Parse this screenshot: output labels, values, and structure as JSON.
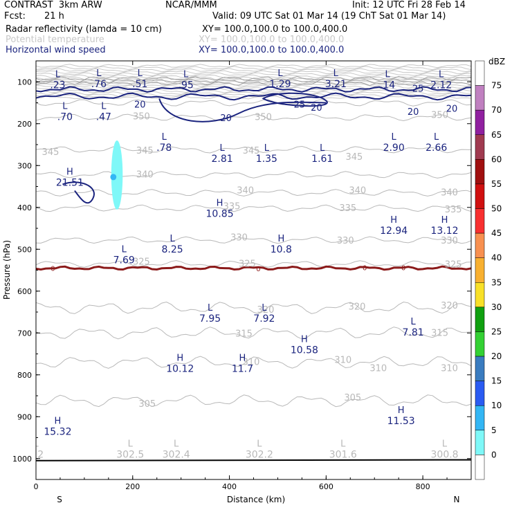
{
  "header": {
    "model": "CONTRAST  3km ARW",
    "center": "NCAR/MMM",
    "init": "Init: 12 UTC Fri 28 Feb 14",
    "fcst_label": "Fcst:",
    "fcst_value": "21 h",
    "valid": "Valid: 09 UTC Sat 01 Mar 14 (19 ChT Sat 01 Mar 14)"
  },
  "fields": [
    {
      "name": "Radar reflectivity (lamda = 10 cm)",
      "xy": "XY= 100.0,100.0 to 100.0,400.0",
      "color": "#000000"
    },
    {
      "name": "Potential temperature",
      "xy": "XY= 100.0,100.0 to 100.0,400.0",
      "color": "#c8c8c8"
    },
    {
      "name": "Horizontal wind speed",
      "xy": "XY= 100.0,100.0 to 100.0,400.0",
      "color": "#1a237e"
    }
  ],
  "colorbar": {
    "unit": "dBZ",
    "levels": [
      "0",
      "5",
      "10",
      "15",
      "20",
      "25",
      "30",
      "35",
      "40",
      "45",
      "50",
      "55",
      "60",
      "65",
      "70",
      "75"
    ],
    "colors": [
      "#ffffff",
      "#7ff8f8",
      "#33b6f4",
      "#2a5bf2",
      "#3a7cc0",
      "#33d133",
      "#10a010",
      "#f8e028",
      "#f8b030",
      "#f89050",
      "#f83030",
      "#d01010",
      "#a01010",
      "#a03a50",
      "#9020a0",
      "#c080c0"
    ]
  },
  "chart_data": {
    "type": "heatmap",
    "title": "",
    "xlabel": "Distance (km)",
    "ylabel": "Pressure (hPa)",
    "xlim": [
      0,
      900
    ],
    "ylim": [
      1050,
      50
    ],
    "x_ticks": [
      "0",
      "200",
      "400",
      "600",
      "800"
    ],
    "y_ticks": [
      "100",
      "200",
      "300",
      "400",
      "500",
      "600",
      "700",
      "800",
      "900",
      "1000"
    ],
    "x_end_labels": {
      "left": "S",
      "right": "N"
    },
    "reflectivity_cells": [
      {
        "x": 160,
        "p": 240,
        "x2": 175,
        "p2": 405,
        "dbz": 5,
        "color": "#7ff8f8"
      },
      {
        "x": 158,
        "p": 320,
        "x2": 162,
        "p2": 335,
        "dbz": 10,
        "color": "#33b6f4"
      }
    ],
    "theta_labels": [
      {
        "x": 470,
        "p": 185,
        "t": "350"
      },
      {
        "x": 218,
        "p": 183,
        "t": "350"
      },
      {
        "x": 835,
        "p": 180,
        "t": "350"
      },
      {
        "x": 30,
        "p": 268,
        "t": "345"
      },
      {
        "x": 225,
        "p": 265,
        "t": "345"
      },
      {
        "x": 445,
        "p": 265,
        "t": "345"
      },
      {
        "x": 658,
        "p": 280,
        "t": "345"
      },
      {
        "x": 225,
        "p": 322,
        "t": "340"
      },
      {
        "x": 433,
        "p": 360,
        "t": "340"
      },
      {
        "x": 665,
        "p": 360,
        "t": "340"
      },
      {
        "x": 855,
        "p": 365,
        "t": "340"
      },
      {
        "x": 405,
        "p": 398,
        "t": "335"
      },
      {
        "x": 645,
        "p": 402,
        "t": "335"
      },
      {
        "x": 863,
        "p": 405,
        "t": "335"
      },
      {
        "x": 420,
        "p": 472,
        "t": "330"
      },
      {
        "x": 640,
        "p": 480,
        "t": "330"
      },
      {
        "x": 855,
        "p": 480,
        "t": "330"
      },
      {
        "x": 218,
        "p": 530,
        "t": "325"
      },
      {
        "x": 437,
        "p": 535,
        "t": "325"
      },
      {
        "x": 863,
        "p": 537,
        "t": "325"
      },
      {
        "x": 475,
        "p": 645,
        "t": "320"
      },
      {
        "x": 664,
        "p": 638,
        "t": "320"
      },
      {
        "x": 855,
        "p": 635,
        "t": "320"
      },
      {
        "x": 430,
        "p": 702,
        "t": "315"
      },
      {
        "x": 835,
        "p": 700,
        "t": "315"
      },
      {
        "x": 635,
        "p": 765,
        "t": "310"
      },
      {
        "x": 445,
        "p": 770,
        "t": "310"
      },
      {
        "x": 708,
        "p": 785,
        "t": "310"
      },
      {
        "x": 855,
        "p": 785,
        "t": "310"
      },
      {
        "x": 230,
        "p": 870,
        "t": "305"
      },
      {
        "x": 655,
        "p": 855,
        "t": "305"
      }
    ],
    "wind_labels": [
      {
        "x": 215,
        "p": 155,
        "t": "20"
      },
      {
        "x": 580,
        "p": 162,
        "t": "20"
      },
      {
        "x": 780,
        "p": 172,
        "t": "20"
      },
      {
        "x": 860,
        "p": 165,
        "t": "20"
      },
      {
        "x": 393,
        "p": 187,
        "t": "20"
      },
      {
        "x": 545,
        "p": 155,
        "t": "25"
      },
      {
        "x": 790,
        "p": 117,
        "t": "25"
      }
    ],
    "wind_zero_labels": [
      {
        "x": 35,
        "p": 545,
        "t": "0"
      },
      {
        "x": 460,
        "p": 546,
        "t": "0"
      },
      {
        "x": 680,
        "p": 543,
        "t": "0"
      },
      {
        "x": 760,
        "p": 543,
        "t": "0"
      }
    ],
    "extrema": [
      {
        "kind": "L",
        "x": 45,
        "p": 82,
        "v": ".23"
      },
      {
        "kind": "L",
        "x": 130,
        "p": 80,
        "v": ".76"
      },
      {
        "kind": "L",
        "x": 215,
        "p": 80,
        "v": ".51"
      },
      {
        "kind": "L",
        "x": 310,
        "p": 82,
        "v": ".95"
      },
      {
        "kind": "L",
        "x": 505,
        "p": 80,
        "v": "1.29"
      },
      {
        "kind": "L",
        "x": 620,
        "p": 80,
        "v": "3.21"
      },
      {
        "kind": "L",
        "x": 727,
        "p": 82,
        "v": ".14"
      },
      {
        "kind": "L",
        "x": 838,
        "p": 82,
        "v": "2.12"
      },
      {
        "kind": "L",
        "x": 60,
        "p": 158,
        "v": ".70"
      },
      {
        "kind": "L",
        "x": 140,
        "p": 158,
        "v": ".47"
      },
      {
        "kind": "L",
        "x": 265,
        "p": 232,
        "v": ".78"
      },
      {
        "kind": "L",
        "x": 385,
        "p": 258,
        "v": "2.81"
      },
      {
        "kind": "L",
        "x": 477,
        "p": 258,
        "v": "1.35"
      },
      {
        "kind": "L",
        "x": 592,
        "p": 258,
        "v": "1.61"
      },
      {
        "kind": "L",
        "x": 740,
        "p": 232,
        "v": "2.90"
      },
      {
        "kind": "L",
        "x": 828,
        "p": 232,
        "v": "2.66"
      },
      {
        "kind": "H",
        "x": 70,
        "p": 315,
        "v": "21.51"
      },
      {
        "kind": "H",
        "x": 380,
        "p": 390,
        "v": "10.85"
      },
      {
        "kind": "H",
        "x": 740,
        "p": 430,
        "v": "12.94"
      },
      {
        "kind": "H",
        "x": 845,
        "p": 430,
        "v": "13.12"
      },
      {
        "kind": "L",
        "x": 282,
        "p": 475,
        "v": "8.25"
      },
      {
        "kind": "H",
        "x": 507,
        "p": 475,
        "v": "10.8"
      },
      {
        "kind": "L",
        "x": 182,
        "p": 500,
        "v": "7.69"
      },
      {
        "kind": "L",
        "x": 360,
        "p": 640,
        "v": "7.95"
      },
      {
        "kind": "L",
        "x": 472,
        "p": 640,
        "v": "7.92"
      },
      {
        "kind": "L",
        "x": 780,
        "p": 673,
        "v": "7.81"
      },
      {
        "kind": "H",
        "x": 555,
        "p": 715,
        "v": "10.58"
      },
      {
        "kind": "H",
        "x": 298,
        "p": 760,
        "v": "10.12"
      },
      {
        "kind": "H",
        "x": 427,
        "p": 760,
        "v": "11.7"
      },
      {
        "kind": "H",
        "x": 755,
        "p": 885,
        "v": "11.53"
      },
      {
        "kind": "H",
        "x": 45,
        "p": 910,
        "v": "15.32"
      },
      {
        "kind": "L",
        "x": 0,
        "p": 965,
        "v": "2.2"
      },
      {
        "kind": "L",
        "x": 195,
        "p": 965,
        "v": "302.5"
      },
      {
        "kind": "L",
        "x": 290,
        "p": 965,
        "v": "302.4"
      },
      {
        "kind": "L",
        "x": 462,
        "p": 965,
        "v": "302.2"
      },
      {
        "kind": "L",
        "x": 635,
        "p": 965,
        "v": "301.6"
      },
      {
        "kind": "L",
        "x": 845,
        "p": 965,
        "v": "300.8"
      }
    ]
  }
}
